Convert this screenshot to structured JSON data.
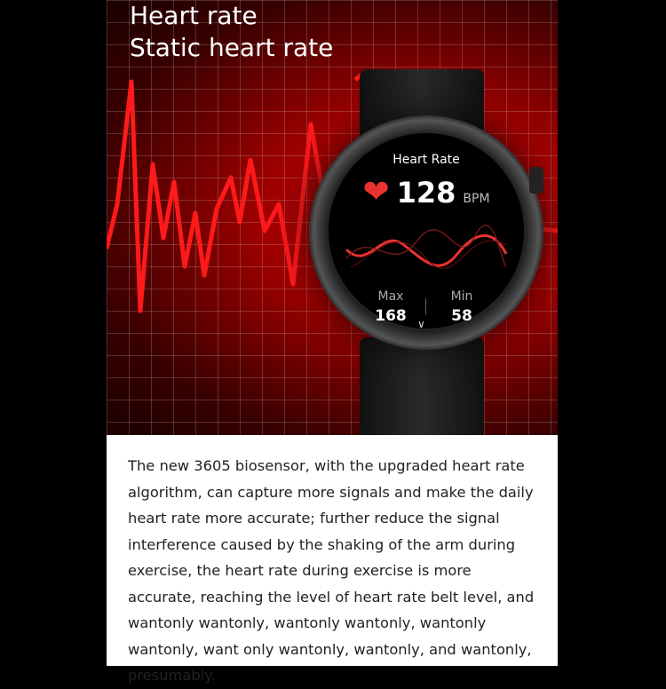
{
  "hero": {
    "title_line1": "Heart rate",
    "title_line2": "Static heart rate"
  },
  "watch": {
    "screen_title": "Heart Rate",
    "heart_icon": "heart-icon",
    "bpm_value": "128",
    "bpm_unit": "BPM",
    "max_label": "Max",
    "max_value": "168",
    "min_label": "Min",
    "min_value": "58",
    "chevron_icon": "chevron-down-icon"
  },
  "description": "The new 3605 biosensor, with the upgraded heart rate algorithm, can capture more signals and make the daily heart rate more accurate; further reduce the signal interference caused by the shaking of the arm during exercise, the heart rate during exercise is more accurate, reaching the level of heart rate belt level, and wantonly wantonly, wantonly wantonly, wantonly wantonly, want only wantonly, wantonly, and wantonly, presumably.",
  "colors": {
    "accent": "#e8332f",
    "background": "#a00000"
  }
}
